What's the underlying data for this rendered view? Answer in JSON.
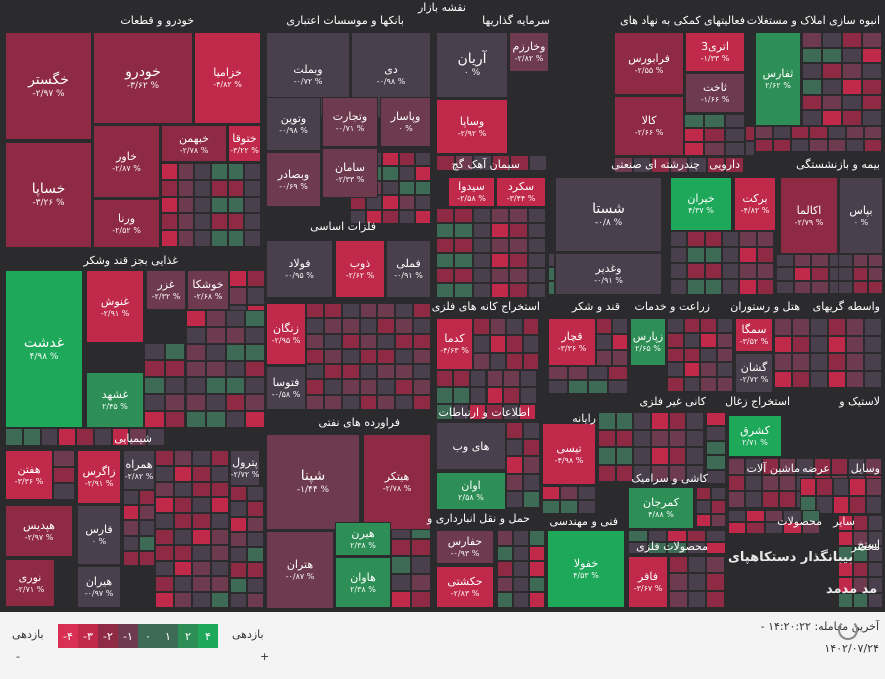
{
  "page_title": "نقشه بازار",
  "colors": {
    "bg": "#2b2b2e",
    "g3": "#1ea85a",
    "g2": "#2d8f55",
    "g1": "#3e6b56",
    "n": "#4a3f4c",
    "r1": "#6e3a4e",
    "r2": "#8e2a44",
    "r3": "#c0294a",
    "r4": "#d92f55"
  },
  "sectors": [
    {
      "label": "خودرو و قطعات"
    },
    {
      "label": "بانکها و موسسات اعتباری"
    },
    {
      "label": "سرمایه گذاریها"
    },
    {
      "label": "فعالیتهای کمکی به نهاد های"
    },
    {
      "label": "انبوه سازی املاک و مستغلات"
    },
    {
      "label": "غذایی بجز قند وشکر"
    },
    {
      "label": "سیمان آهک گچ"
    },
    {
      "label": "چندرشته ای صنعتی"
    },
    {
      "label": "دارویی"
    },
    {
      "label": "بیمه و بازنشستگی"
    },
    {
      "label": "فلزات اساسی"
    },
    {
      "label": "استخراج کانه های فلزی"
    },
    {
      "label": "قند و شکر"
    },
    {
      "label": "زراعت و خدمات"
    },
    {
      "label": "هتل و رستوران"
    },
    {
      "label": "واسطه گریهای"
    },
    {
      "label": "شیمیایی"
    },
    {
      "label": "فراورده های نفتی"
    },
    {
      "label": "اطلاعات و ارتباطات"
    },
    {
      "label": "رایانه"
    },
    {
      "label": "کانی غیر فلزی"
    },
    {
      "label": "استخراج زغال"
    },
    {
      "label": "لاستیک و"
    },
    {
      "label": "کاشی و سرامیک"
    },
    {
      "label": "ماشین آلات"
    },
    {
      "label": "عرضه"
    },
    {
      "label": "وسایل"
    },
    {
      "label": "حمل و نقل انبارداری و"
    },
    {
      "label": "فنی و مهندسی"
    },
    {
      "label": "محصولات فلزی"
    },
    {
      "label": "سایر"
    },
    {
      "label": "محصولات"
    },
    {
      "label": "استخ"
    },
    {
      "label": "مخصر"
    }
  ],
  "tiles": [
    {
      "name": "خگستر",
      "pct": "-۲/۹۷ %"
    },
    {
      "name": "خساپا",
      "pct": "-۳/۲۶ %"
    },
    {
      "name": "خودرو",
      "pct": "-۳/۶۲ %"
    },
    {
      "name": "خزامیا",
      "pct": "-۴/۸۲ %"
    },
    {
      "name": "خاور",
      "pct": "-۲/۸۷ %"
    },
    {
      "name": "خبهمن",
      "pct": "-۲/۷۸ %"
    },
    {
      "name": "ختوقا",
      "pct": "-۳/۲۲ %"
    },
    {
      "name": "ورنا",
      "pct": "-۲/۵۲ %"
    },
    {
      "name": "وبملت",
      "pct": "-۰/۷۲ %"
    },
    {
      "name": "دی",
      "pct": "-۰/۹۸ %"
    },
    {
      "name": "وتجارت",
      "pct": "-۰/۷۱ %"
    },
    {
      "name": "وپاسار",
      "pct": "۰ %"
    },
    {
      "name": "وتوین",
      "pct": "-۰/۹۸ %"
    },
    {
      "name": "سامان",
      "pct": "-۲/۳۳ %"
    },
    {
      "name": "وبصادر",
      "pct": "-۰/۶۹ %"
    },
    {
      "name": "آریان",
      "pct": "۰ %"
    },
    {
      "name": "وخارزم",
      "pct": "-۲/۸۲ %"
    },
    {
      "name": "وساپا",
      "pct": "-۲/۹۲ %"
    },
    {
      "name": "اتری3",
      "pct": "-۱/۳۳ %"
    },
    {
      "name": "فرابورس",
      "pct": "-۲/۵۵ %"
    },
    {
      "name": "ثفارس",
      "pct": "۲/۶۲ %"
    },
    {
      "name": "ثاخت",
      "pct": "-۱/۶۶ %"
    },
    {
      "name": "کالا",
      "pct": "-۲/۶۶ %"
    },
    {
      "name": "غدشت",
      "pct": "۴/۹۸ %"
    },
    {
      "name": "غنوش",
      "pct": "-۲/۹۱ %"
    },
    {
      "name": "غزر",
      "pct": "-۲/۳۲ %"
    },
    {
      "name": "خوشکا",
      "pct": "-۲/۶۸ %"
    },
    {
      "name": "غشهد",
      "pct": "۲/۴۵ %"
    },
    {
      "name": "سکرد",
      "pct": "-۳/۴۴ %"
    },
    {
      "name": "سیدوا",
      "pct": "-۲/۵۸ %"
    },
    {
      "name": "شستا",
      "pct": "-۰/۸ %"
    },
    {
      "name": "وغدیر",
      "pct": "-۰/۹۱ %"
    },
    {
      "name": "خیران",
      "pct": "۴/۳۷ %"
    },
    {
      "name": "برکت",
      "pct": "-۴/۸۲ %"
    },
    {
      "name": "اکالما",
      "pct": "-۲/۷۹ %"
    },
    {
      "name": "بپاس",
      "pct": "۰ %"
    },
    {
      "name": "فولاد",
      "pct": "-۰/۹۵ %"
    },
    {
      "name": "ذوب",
      "pct": "-۲/۶۲ %"
    },
    {
      "name": "فملی",
      "pct": "-۰/۹۱ %"
    },
    {
      "name": "زنگان",
      "pct": "-۲/۹۵ %"
    },
    {
      "name": "فتوسا",
      "pct": "-۰/۵۸ %"
    },
    {
      "name": "کدما",
      "pct": "-۴/۶۳ %"
    },
    {
      "name": "قچار",
      "pct": "-۳/۳۶ %"
    },
    {
      "name": "زپارس",
      "pct": "۲/۶۵ %"
    },
    {
      "name": "سمگا",
      "pct": "-۳/۵۲ %"
    },
    {
      "name": "گشان",
      "pct": "-۲/۷۲ %"
    },
    {
      "name": "هفتن",
      "pct": "-۳/۳۶ %"
    },
    {
      "name": "زاگرس",
      "pct": "-۲/۹۱ %"
    },
    {
      "name": "همراه",
      "pct": "-۲/۸۲ %"
    },
    {
      "name": "پترول",
      "pct": "-۲/۷۲ %"
    },
    {
      "name": "هپدیس",
      "pct": "-۲/۹۷ %"
    },
    {
      "name": "فارس",
      "pct": "۰ %"
    },
    {
      "name": "نوری",
      "pct": "-۲/۷۱ %"
    },
    {
      "name": "هیران",
      "pct": "-۰/۹۷ %"
    },
    {
      "name": "شپنا",
      "pct": "-۱/۴۴ %"
    },
    {
      "name": "هیتکر",
      "pct": "-۲/۷۸ %"
    },
    {
      "name": "هیرن",
      "pct": "۲/۳۸ %"
    },
    {
      "name": "هتران",
      "pct": "-۰/۸۷ %"
    },
    {
      "name": "هاوان",
      "pct": "۲/۳۸ %"
    },
    {
      "name": "های وب",
      "pct": ""
    },
    {
      "name": "اوان",
      "pct": "۲/۵۸ %"
    },
    {
      "name": "تیسی",
      "pct": "-۴/۹۸ %"
    },
    {
      "name": "کشرق",
      "pct": "۲/۷۱ %"
    },
    {
      "name": "کمرجان",
      "pct": "۴/۸۸ %"
    },
    {
      "name": "حفارس",
      "pct": "-۰/۹۳ %"
    },
    {
      "name": "حکشتی",
      "pct": "-۲/۸۳ %"
    },
    {
      "name": "خفولا",
      "pct": "۴/۵۳ %"
    },
    {
      "name": "فافر",
      "pct": "-۳/۶۷ %"
    }
  ],
  "watermark": {
    "line1": "بیبانگذار دستکاهپای",
    "line2": "مد مدمد"
  },
  "legend": {
    "left_title": "بازدهی",
    "right_title": "بازدهی",
    "swatches": [
      {
        "label": "-۴"
      },
      {
        "label": "-۳"
      },
      {
        "label": "-۲"
      },
      {
        "label": "-۱"
      },
      {
        "label": "۰"
      },
      {
        "label": "۱"
      },
      {
        "label": "۲"
      },
      {
        "label": "۴"
      }
    ],
    "left_min": "-",
    "right_plus": "+"
  },
  "footer": {
    "last_update": "آخرین معامله: ۱۴:۲۰:۲۲ -",
    "date": "۱۴۰۲/۰۷/۲۴"
  }
}
